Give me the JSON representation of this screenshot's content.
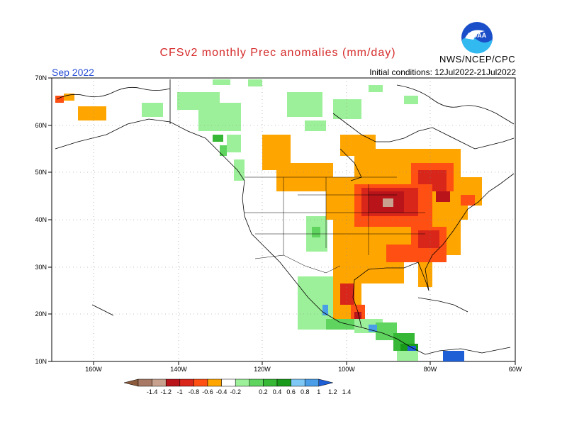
{
  "title": "CFSv2 monthly Prec anomalies (mm/day)",
  "month": "Sep 2022",
  "initial_conditions": "Initial conditions: 12Jul2022-21Jul2022",
  "agency": "NWS/NCEP/CPC",
  "logo": {
    "text": "NOAA",
    "icon": "noaa-logo-icon"
  },
  "lat_labels": [
    "70N",
    "60N",
    "50N",
    "40N",
    "30N",
    "20N",
    "10N"
  ],
  "lon_labels": [
    "160W",
    "140W",
    "120W",
    "100W",
    "80W",
    "60W"
  ],
  "legend": {
    "labels": [
      "-1.4",
      "-1.2",
      "-1",
      "-0.8",
      "-0.6",
      "-0.4",
      "-0.2",
      "0.2",
      "0.4",
      "0.6",
      "0.8",
      "1",
      "1.2",
      "1.4"
    ],
    "colors": [
      "#8b5a3c",
      "#a87a66",
      "#c9a28f",
      "#b8141a",
      "#d8261a",
      "#ff4f12",
      "#ffa500",
      "#ffffff",
      "#9df09a",
      "#5fd45f",
      "#36b836",
      "#1a9a1a",
      "#7fc8f5",
      "#4a9ee8",
      "#1e5fd6"
    ]
  },
  "colors": {
    "title": "#d62a2a",
    "month": "#2a4fd6"
  }
}
